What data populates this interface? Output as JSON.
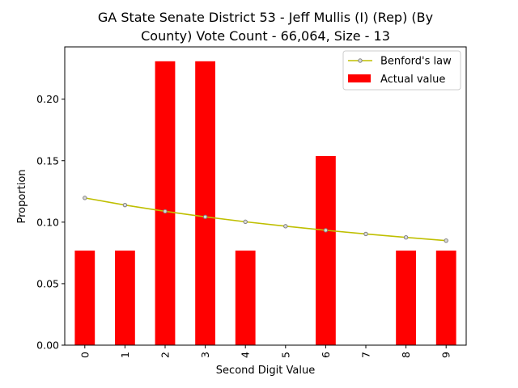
{
  "chart_data": {
    "type": "bar",
    "title_line1": "GA State Senate District 53 - Jeff Mullis (I) (Rep) (By",
    "title_line2": "County) Vote Count - 66,064, Size - 13",
    "xlabel": "Second Digit Value",
    "ylabel": "Proportion",
    "categories": [
      "0",
      "1",
      "2",
      "3",
      "4",
      "5",
      "6",
      "7",
      "8",
      "9"
    ],
    "yticks": [
      "0.00",
      "0.05",
      "0.10",
      "0.15",
      "0.20"
    ],
    "ylim": [
      0,
      0.2425
    ],
    "series": [
      {
        "name": "Actual value",
        "type": "bar",
        "color": "#ff0000",
        "values": [
          0.0769,
          0.0769,
          0.2308,
          0.2308,
          0.0769,
          0.0,
          0.1538,
          0.0,
          0.0769,
          0.0769
        ]
      },
      {
        "name": "Benford's law",
        "type": "line",
        "color": "#bfbf00",
        "values": [
          0.1197,
          0.1139,
          0.1088,
          0.1043,
          0.1003,
          0.0967,
          0.0934,
          0.0904,
          0.0876,
          0.085
        ]
      }
    ],
    "legend_position": "top-right",
    "grid": false
  }
}
